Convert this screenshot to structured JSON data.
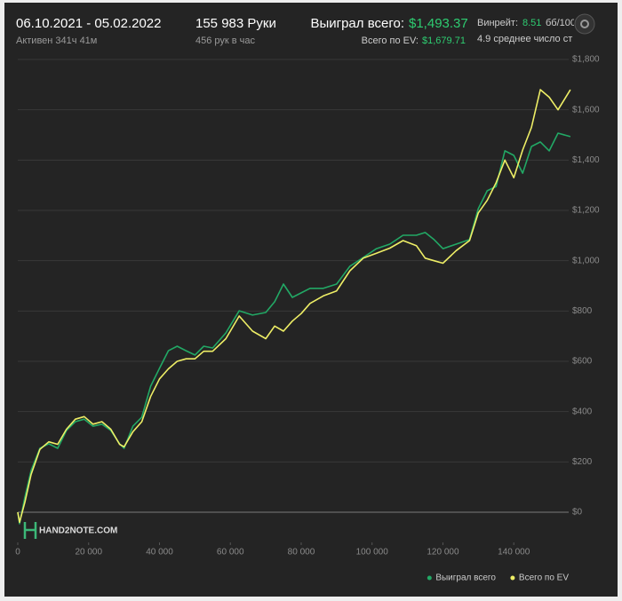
{
  "header": {
    "dates": "06.10.2021 - 05.02.2022",
    "active": "Активен 341ч 41м",
    "hands": "155 983 Руки",
    "hands_per_hour": "456 рук в час",
    "won_label": "Выиграл всего:",
    "won_value": "$1,493.37",
    "ev_label": "Всего по EV:",
    "ev_value": "$1,679.71",
    "winrate_label": "Винрейт:",
    "winrate_value": "8.51",
    "winrate_unit": "бб/100",
    "avg_players": "4.9 среднее число ст"
  },
  "logo": "HAND2NOTE.COM",
  "chart_data": {
    "type": "line",
    "x": [
      0,
      500,
      2000,
      3750,
      6250,
      8750,
      11250,
      13750,
      16250,
      18750,
      21250,
      23750,
      26250,
      28750,
      30000,
      32500,
      35000,
      37500,
      40000,
      42500,
      45000,
      47500,
      50000,
      52500,
      55000,
      58750,
      62500,
      66250,
      70000,
      72500,
      75000,
      77500,
      80000,
      82500,
      86250,
      90000,
      93750,
      97500,
      101250,
      105000,
      108750,
      112500,
      115000,
      117500,
      120000,
      123750,
      127500,
      130000,
      132500,
      135000,
      137500,
      140000,
      142500,
      145000,
      147500,
      150000,
      152500,
      155983
    ],
    "series": [
      {
        "name": "Выиграл всего",
        "color": "#22a865",
        "values": [
          0,
          -46,
          60,
          166,
          254,
          272,
          254,
          325,
          360,
          370,
          342,
          350,
          325,
          272,
          254,
          342,
          378,
          501,
          572,
          642,
          660,
          642,
          625,
          660,
          653,
          713,
          801,
          784,
          794,
          837,
          907,
          854,
          872,
          890,
          890,
          907,
          978,
          1013,
          1048,
          1066,
          1101,
          1101,
          1112,
          1084,
          1048,
          1066,
          1084,
          1207,
          1278,
          1295,
          1437,
          1419,
          1348,
          1454,
          1472,
          1437,
          1507,
          1493.37
        ]
      },
      {
        "name": "Всего по EV",
        "color": "#eeee66",
        "values": [
          0,
          -40,
          40,
          150,
          250,
          280,
          270,
          330,
          370,
          380,
          350,
          360,
          330,
          270,
          260,
          320,
          360,
          460,
          530,
          570,
          600,
          610,
          610,
          640,
          640,
          690,
          780,
          720,
          690,
          740,
          720,
          760,
          790,
          830,
          860,
          880,
          960,
          1010,
          1030,
          1050,
          1080,
          1060,
          1010,
          1000,
          990,
          1040,
          1080,
          1190,
          1240,
          1310,
          1400,
          1330,
          1440,
          1530,
          1680,
          1650,
          1600,
          1679.71
        ]
      }
    ],
    "xlim": [
      0,
      156000
    ],
    "xticks": [
      0,
      {
        "value": 20000,
        "label": "20 000"
      },
      {
        "value": 40000,
        "label": "40 000"
      },
      {
        "value": 60000,
        "label": "60 000"
      },
      {
        "value": 80000,
        "label": "80 000"
      },
      {
        "value": 100000,
        "label": "100 000"
      },
      {
        "value": 120000,
        "label": "120 000"
      },
      {
        "value": 140000,
        "label": "140 000"
      }
    ],
    "ylim": [
      -120,
      1800
    ],
    "yticks": [
      {
        "value": 0,
        "label": "$0"
      },
      {
        "value": 200,
        "label": "$200"
      },
      {
        "value": 400,
        "label": "$400"
      },
      {
        "value": 600,
        "label": "$600"
      },
      {
        "value": 800,
        "label": "$800"
      },
      {
        "value": 1000,
        "label": "$1,000"
      },
      {
        "value": 1200,
        "label": "$1,200"
      },
      {
        "value": 1400,
        "label": "$1,400"
      },
      {
        "value": 1600,
        "label": "$1,600"
      },
      {
        "value": 1800,
        "label": "$1,800"
      }
    ],
    "grid": true,
    "legend": "bottom-right"
  }
}
